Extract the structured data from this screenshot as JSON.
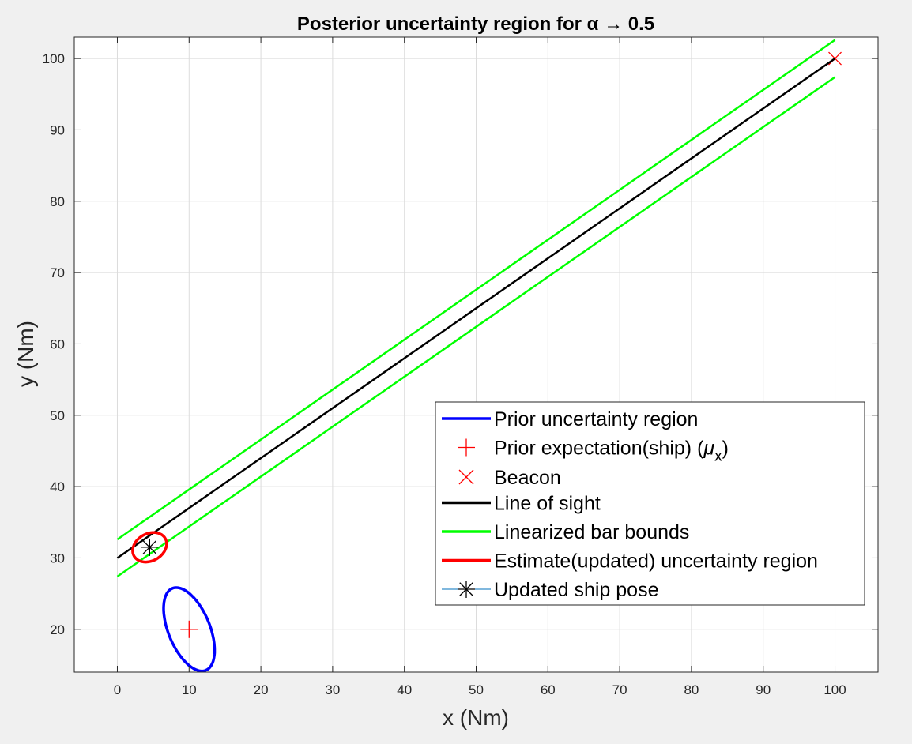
{
  "chart_data": {
    "type": "line",
    "title_prefix": "Posterior uncertainty region for ",
    "title_symbol": "α → 0.5",
    "xlabel": "x (Nm)",
    "ylabel": "y (Nm)",
    "xlim": [
      -6,
      106
    ],
    "ylim": [
      14,
      103
    ],
    "xticks": [
      0,
      10,
      20,
      30,
      40,
      50,
      60,
      70,
      80,
      90,
      100
    ],
    "yticks": [
      20,
      30,
      40,
      50,
      60,
      70,
      80,
      90,
      100
    ],
    "grid": true,
    "legend_placement": "lower-right",
    "series": [
      {
        "name": "Prior uncertainty region",
        "kind": "ellipse",
        "color": "#0000ff",
        "center": [
          10,
          20
        ],
        "semi_axis_major": 6.2,
        "semi_axis_minor": 2.9,
        "angle_deg": 112
      },
      {
        "name": "Prior expectation(ship) (μx)",
        "kind": "marker",
        "marker": "plus",
        "color": "#ff0000",
        "points": [
          [
            10,
            20
          ]
        ]
      },
      {
        "name": "Beacon",
        "kind": "marker",
        "marker": "x",
        "color": "#ff0000",
        "points": [
          [
            100,
            100
          ]
        ]
      },
      {
        "name": "Line of sight",
        "kind": "line",
        "color": "#000000",
        "points": [
          [
            0,
            30
          ],
          [
            100,
            100
          ]
        ]
      },
      {
        "name": "Linearized bar bounds",
        "kind": "line",
        "color": "#00ff00",
        "points": [
          [
            0,
            32.6
          ],
          [
            100,
            102.6
          ]
        ],
        "points_lower": [
          [
            0,
            27.4
          ],
          [
            100,
            97.4
          ]
        ]
      },
      {
        "name": "Estimate(updated) uncertainty region",
        "kind": "ellipse",
        "color": "#ff0000",
        "center": [
          4.5,
          31.5
        ],
        "semi_axis_major": 2.5,
        "semi_axis_minor": 1.9,
        "angle_deg": 30
      },
      {
        "name": "Updated ship pose",
        "kind": "marker",
        "marker": "asterisk",
        "color": "#000000",
        "line_color": "#0072bd",
        "points": [
          [
            4.5,
            31.5
          ]
        ]
      }
    ],
    "legend_entries": [
      {
        "label": "Prior uncertainty region",
        "symbol": "line",
        "color": "#0000ff"
      },
      {
        "label_main": "Prior expectation(ship) (",
        "label_mu": "μ",
        "label_sub": "x",
        "label_close": ")",
        "symbol": "plus",
        "color": "#ff0000"
      },
      {
        "label": "Beacon",
        "symbol": "x",
        "color": "#ff0000"
      },
      {
        "label": "Line of sight",
        "symbol": "line",
        "color": "#000000"
      },
      {
        "label": "Linearized bar bounds",
        "symbol": "line",
        "color": "#00ff00"
      },
      {
        "label": "Estimate(updated) uncertainty region",
        "symbol": "line",
        "color": "#ff0000"
      },
      {
        "label": "Updated ship pose",
        "symbol": "asterisk-line",
        "color": "#000000",
        "line_color": "#0072bd"
      }
    ]
  }
}
